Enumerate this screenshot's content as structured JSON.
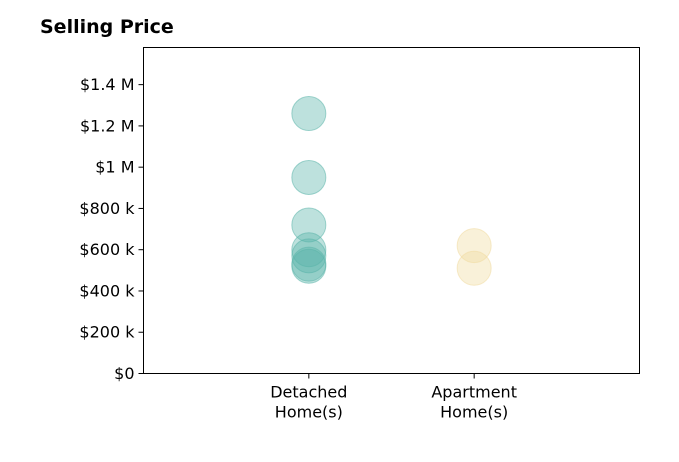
{
  "chart_data": {
    "type": "scatter",
    "title": "Selling Price",
    "xlabel": "",
    "ylabel": "",
    "categories": [
      "Detached\nHome(s)",
      "Apartment\nHome(s)"
    ],
    "xlim": [
      0,
      3
    ],
    "ylim": [
      0,
      1580000
    ],
    "yticks": [
      0,
      200000,
      400000,
      600000,
      800000,
      1000000,
      1200000,
      1400000
    ],
    "ytick_labels": [
      "$0",
      "$200 k",
      "$400 k",
      "$600 k",
      "$800 k",
      "$1 M",
      "$1.2 M",
      "$1.4 M"
    ],
    "grid": false,
    "series": [
      {
        "category": "Detached\nHome(s)",
        "color": "#5bb5a9",
        "values": [
          1260000,
          950000,
          720000,
          600000,
          570000,
          530000,
          520000
        ]
      },
      {
        "category": "Apartment\nHome(s)",
        "color": "#f0dba0",
        "values": [
          620000,
          510000
        ]
      }
    ]
  }
}
